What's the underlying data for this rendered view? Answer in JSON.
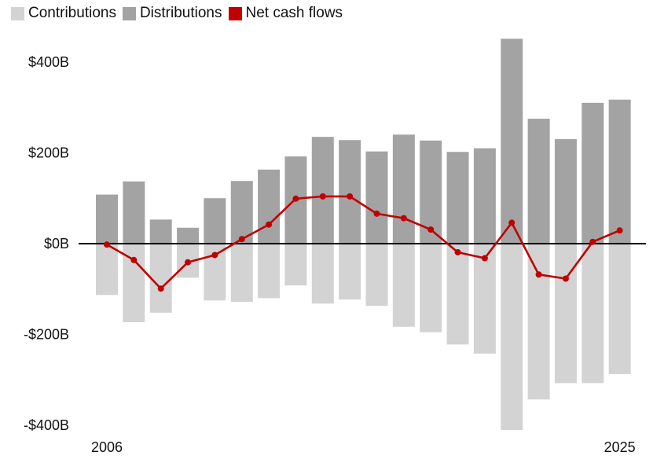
{
  "legend": {
    "items": [
      {
        "label": "Contributions",
        "color": "#d3d3d3"
      },
      {
        "label": "Distributions",
        "color": "#a3a3a3"
      },
      {
        "label": "Net cash flows",
        "color": "#c00000"
      }
    ]
  },
  "chart_data": {
    "type": "bar",
    "title": "",
    "xlabel": "",
    "ylabel": "",
    "x": [
      2006,
      2007,
      2008,
      2009,
      2010,
      2011,
      2012,
      2013,
      2014,
      2015,
      2016,
      2017,
      2018,
      2019,
      2020,
      2021,
      2022,
      2023,
      2024,
      2025
    ],
    "x_tick_labels": [
      "2006",
      "2025"
    ],
    "ylim": [
      -420,
      450
    ],
    "y_ticks": [
      400,
      200,
      0,
      -200,
      -400
    ],
    "y_tick_labels": [
      "$400B",
      "$200B",
      "$0B",
      "-$200B",
      "-$400B"
    ],
    "series": [
      {
        "name": "Contributions",
        "type": "bar",
        "color": "#d3d3d3",
        "values": [
          -113,
          -173,
          -152,
          -75,
          -125,
          -128,
          -120,
          -92,
          -132,
          -123,
          -137,
          -183,
          -195,
          -222,
          -242,
          -410,
          -343,
          -307,
          -307,
          -287
        ]
      },
      {
        "name": "Distributions",
        "type": "bar",
        "color": "#a3a3a3",
        "values": [
          108,
          137,
          53,
          35,
          100,
          138,
          163,
          192,
          235,
          228,
          203,
          240,
          227,
          202,
          210,
          451,
          275,
          230,
          310,
          317
        ]
      },
      {
        "name": "Net cash flows",
        "type": "line",
        "color": "#c00000",
        "values": [
          -2,
          -36,
          -99,
          -41,
          -25,
          10,
          42,
          99,
          104,
          104,
          66,
          56,
          31,
          -19,
          -32,
          46,
          -68,
          -77,
          4,
          29
        ]
      }
    ],
    "grid": false,
    "legend_position": "top-left"
  }
}
